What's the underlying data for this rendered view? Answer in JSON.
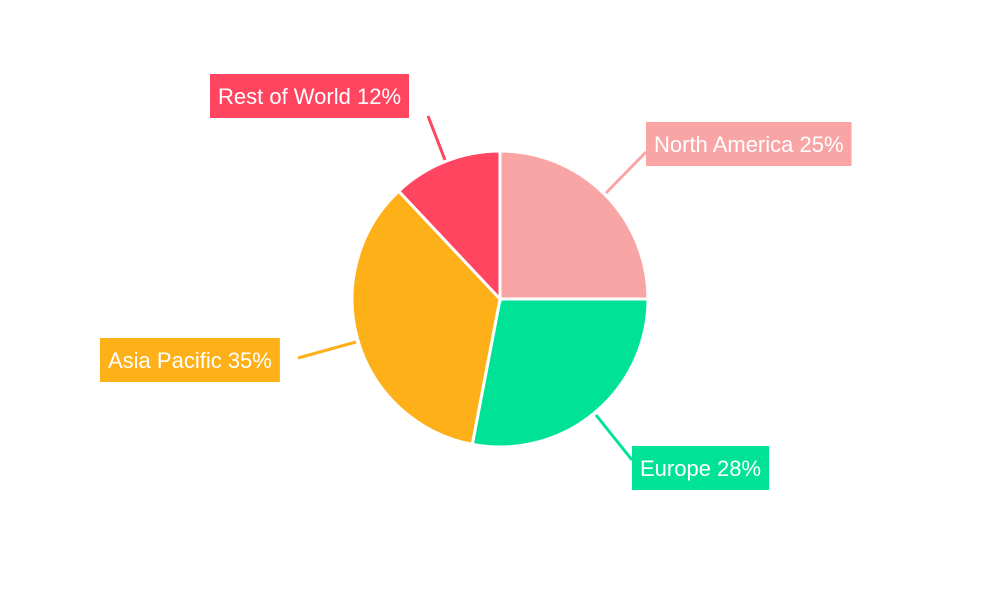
{
  "chart_data": {
    "type": "pie",
    "title": "",
    "start_angle": "top, clockwise",
    "slices": [
      {
        "label": "North America",
        "value": 25,
        "display": "North America 25%",
        "color": "#f9a5a6"
      },
      {
        "label": "Europe",
        "value": 28,
        "display": "Europe 28%",
        "color": "#00e396"
      },
      {
        "label": "Asia Pacific",
        "value": 35,
        "display": "Asia Pacific 35%",
        "color": "#feb019"
      },
      {
        "label": "Rest of World",
        "value": 12,
        "display": "Rest of World 12%",
        "color": "#ff4560"
      }
    ],
    "legend": "none; callout labels outside slices"
  }
}
